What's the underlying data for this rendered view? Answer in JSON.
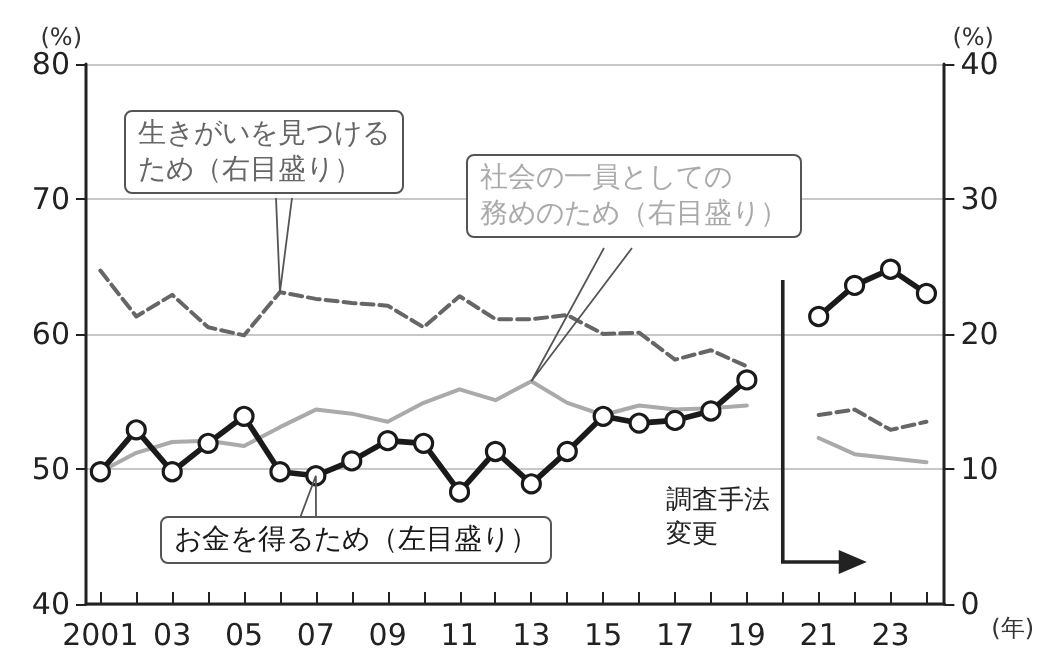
{
  "chart_data": {
    "type": "line",
    "x": [
      2001,
      2002,
      2003,
      2004,
      2005,
      2006,
      2007,
      2008,
      2009,
      2010,
      2011,
      2012,
      2013,
      2014,
      2015,
      2016,
      2017,
      2018,
      2019,
      2020,
      2021,
      2022,
      2023,
      2024
    ],
    "series": [
      {
        "name": "お金を得るため（左目盛り）",
        "color": "#1a1a1a",
        "marker": "circle",
        "line_style": "solid",
        "values": [
          49.8,
          52.9,
          49.8,
          51.9,
          53.9,
          49.8,
          49.5,
          50.6,
          52.1,
          51.9,
          48.3,
          51.3,
          48.9,
          51.3,
          53.9,
          53.4,
          53.6,
          54.3,
          56.6,
          null,
          61.3,
          63.6,
          64.8,
          63.0
        ]
      },
      {
        "name": "生きがいを見つけるため（右目盛り）",
        "color": "#666666",
        "marker": "none",
        "line_style": "dashed",
        "axis": "y2",
        "values": [
          24.7,
          21.3,
          22.9,
          20.5,
          19.9,
          23.1,
          22.6,
          22.3,
          22.1,
          20.5,
          22.8,
          21.1,
          21.1,
          21.4,
          20.0,
          20.1,
          18.1,
          18.8,
          17.6,
          null,
          14.0,
          14.4,
          12.9,
          13.5
        ]
      },
      {
        "name": "社会の一員としての務めのため（右目盛り）",
        "color": "#aaaaaa",
        "marker": "none",
        "line_style": "solid",
        "axis": "y2",
        "values": [
          9.8,
          11.2,
          12.0,
          12.1,
          11.7,
          13.1,
          14.4,
          14.1,
          13.5,
          14.9,
          15.9,
          15.1,
          16.5,
          14.9,
          14.0,
          14.7,
          14.4,
          14.5,
          14.7,
          null,
          12.3,
          11.1,
          10.8,
          10.5
        ]
      }
    ],
    "xlabel": "(年)",
    "ylabel": "(%)",
    "y2label": "(%)",
    "xlim": [
      2000.6,
      2024.5
    ],
    "xticks": [
      {
        "value": 2001,
        "label": "2001"
      },
      {
        "value": 2002,
        "label": null
      },
      {
        "value": 2003,
        "label": "03"
      },
      {
        "value": 2004,
        "label": null
      },
      {
        "value": 2005,
        "label": "05"
      },
      {
        "value": 2006,
        "label": null
      },
      {
        "value": 2007,
        "label": "07"
      },
      {
        "value": 2008,
        "label": null
      },
      {
        "value": 2009,
        "label": "09"
      },
      {
        "value": 2010,
        "label": null
      },
      {
        "value": 2011,
        "label": "11"
      },
      {
        "value": 2012,
        "label": null
      },
      {
        "value": 2013,
        "label": "13"
      },
      {
        "value": 2014,
        "label": null
      },
      {
        "value": 2015,
        "label": "15"
      },
      {
        "value": 2016,
        "label": null
      },
      {
        "value": 2017,
        "label": "17"
      },
      {
        "value": 2018,
        "label": null
      },
      {
        "value": 2019,
        "label": "19"
      },
      {
        "value": 2020,
        "label": null
      },
      {
        "value": 2021,
        "label": "21"
      },
      {
        "value": 2022,
        "label": null
      },
      {
        "value": 2023,
        "label": "23"
      },
      {
        "value": 2024,
        "label": null
      }
    ],
    "ylim": [
      40,
      80
    ],
    "yticks": [
      40,
      50,
      60,
      70,
      80
    ],
    "y2lim": [
      0,
      40
    ],
    "y2ticks": [
      0,
      10,
      20,
      30,
      40
    ],
    "grid": "y",
    "annotations": [
      "調査手法変更"
    ]
  }
}
